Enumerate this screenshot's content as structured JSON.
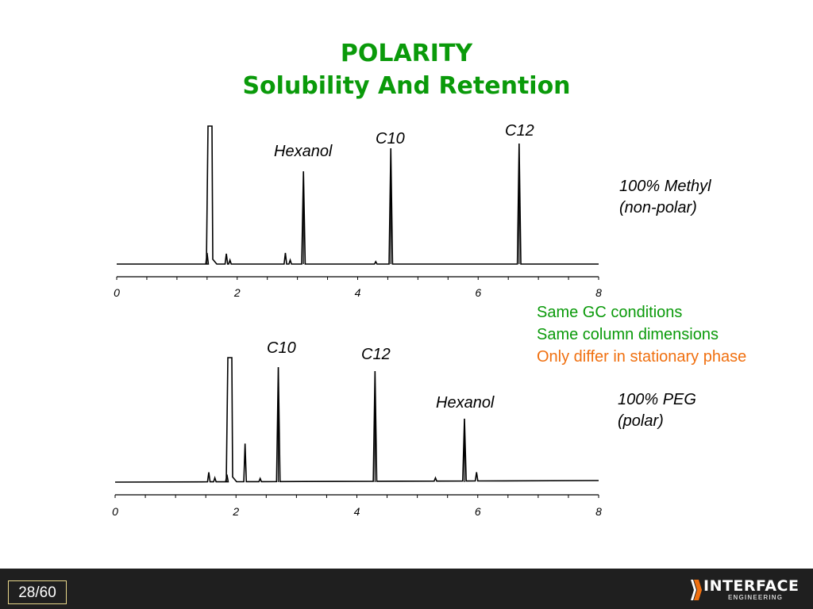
{
  "slide": {
    "title_line1": "POLARITY",
    "title_line2": "Solubility And Retention",
    "notes": [
      "Same GC conditions",
      "Same column dimensions",
      "Only differ in stationary phase"
    ],
    "note_colors": [
      "#0a9a0a",
      "#0a9a0a",
      "#f07010"
    ],
    "page_number": "28/60",
    "logo_text": "INTERFACE",
    "logo_subtext": "ENGINEERING"
  },
  "chart_data": [
    {
      "type": "line",
      "phase_label": [
        "100% Methyl",
        "(non-polar)"
      ],
      "x_ticks": [
        "0",
        "2",
        "4",
        "6",
        "8"
      ],
      "xlim": [
        0,
        8
      ],
      "peaks": [
        {
          "label": "Hexanol",
          "retention_time": 3.1
        },
        {
          "label": "C10",
          "retention_time": 4.55
        },
        {
          "label": "C12",
          "retention_time": 6.68
        }
      ]
    },
    {
      "type": "line",
      "phase_label": [
        "100% PEG",
        "(polar)"
      ],
      "x_ticks": [
        "0",
        "2",
        "4",
        "6",
        "8"
      ],
      "xlim": [
        0,
        8
      ],
      "peaks": [
        {
          "label": "C10",
          "retention_time": 2.7
        },
        {
          "label": "C12",
          "retention_time": 4.3
        },
        {
          "label": "Hexanol",
          "retention_time": 5.78
        }
      ]
    }
  ]
}
